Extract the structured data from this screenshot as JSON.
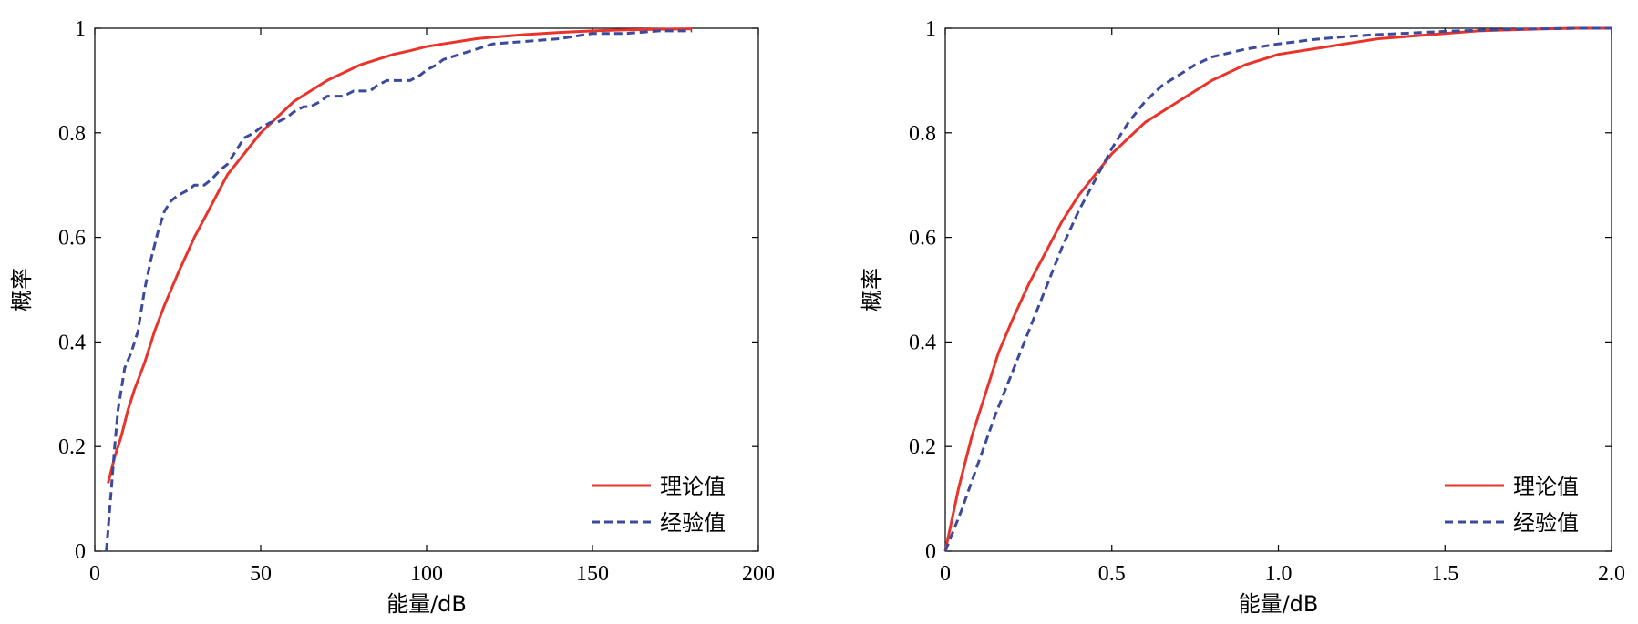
{
  "chart_data": [
    {
      "type": "line",
      "xlabel": "能量/dB",
      "ylabel": "概率",
      "xlim": [
        0,
        200
      ],
      "ylim": [
        0,
        1
      ],
      "xticks": [
        "0",
        "50",
        "100",
        "150",
        "200"
      ],
      "yticks": [
        "0",
        "0.2",
        "0.4",
        "0.6",
        "0.8",
        "1"
      ],
      "legend_position": "bottom-right",
      "grid": false,
      "series": [
        {
          "name": "理论值",
          "color": "#e8342b",
          "style": "solid",
          "x": [
            4,
            6,
            8,
            10,
            12,
            15,
            18,
            21,
            25,
            30,
            35,
            40,
            45,
            50,
            55,
            60,
            65,
            70,
            75,
            80,
            85,
            90,
            95,
            100,
            105,
            110,
            115,
            120,
            130,
            140,
            150,
            160,
            170,
            180
          ],
          "y": [
            0.13,
            0.18,
            0.22,
            0.27,
            0.31,
            0.36,
            0.42,
            0.47,
            0.53,
            0.6,
            0.66,
            0.72,
            0.76,
            0.8,
            0.83,
            0.86,
            0.88,
            0.9,
            0.915,
            0.93,
            0.94,
            0.95,
            0.957,
            0.965,
            0.97,
            0.975,
            0.98,
            0.983,
            0.988,
            0.992,
            0.995,
            0.997,
            0.998,
            0.999
          ]
        },
        {
          "name": "经验值",
          "color": "#3b4a9c",
          "style": "dashed",
          "x": [
            3.5,
            5,
            6,
            7,
            9,
            11,
            13,
            15,
            17,
            19,
            21,
            23,
            25,
            28,
            30,
            33,
            35,
            38,
            40,
            43,
            45,
            48,
            50,
            53,
            55,
            58,
            60,
            63,
            65,
            68,
            70,
            73,
            75,
            78,
            80,
            83,
            85,
            88,
            90,
            93,
            95,
            98,
            100,
            103,
            105,
            110,
            115,
            120,
            130,
            140,
            145,
            150,
            160,
            170,
            180
          ],
          "y": [
            0.0,
            0.12,
            0.2,
            0.27,
            0.35,
            0.38,
            0.42,
            0.5,
            0.56,
            0.61,
            0.65,
            0.67,
            0.68,
            0.69,
            0.7,
            0.7,
            0.71,
            0.73,
            0.74,
            0.77,
            0.79,
            0.8,
            0.81,
            0.82,
            0.82,
            0.83,
            0.84,
            0.85,
            0.85,
            0.86,
            0.87,
            0.87,
            0.87,
            0.88,
            0.88,
            0.88,
            0.89,
            0.9,
            0.9,
            0.9,
            0.9,
            0.91,
            0.92,
            0.93,
            0.94,
            0.95,
            0.96,
            0.97,
            0.975,
            0.98,
            0.985,
            0.99,
            0.99,
            0.995,
            0.995
          ]
        }
      ]
    },
    {
      "type": "line",
      "xlabel": "能量/dB",
      "ylabel": "概率",
      "xlim": [
        0,
        2.0
      ],
      "ylim": [
        0,
        1
      ],
      "xticks": [
        "0",
        "0.5",
        "1.0",
        "1.5",
        "2.0"
      ],
      "yticks": [
        "0",
        "0.2",
        "0.4",
        "0.6",
        "0.8",
        "1"
      ],
      "legend_position": "bottom-right",
      "grid": false,
      "series": [
        {
          "name": "理论值",
          "color": "#e8342b",
          "style": "solid",
          "x": [
            0,
            0.04,
            0.08,
            0.12,
            0.16,
            0.2,
            0.25,
            0.3,
            0.35,
            0.4,
            0.45,
            0.5,
            0.55,
            0.6,
            0.65,
            0.7,
            0.75,
            0.8,
            0.9,
            1.0,
            1.1,
            1.2,
            1.3,
            1.4,
            1.5,
            1.6,
            1.7,
            1.8,
            1.9,
            2.0
          ],
          "y": [
            0,
            0.12,
            0.22,
            0.3,
            0.38,
            0.44,
            0.51,
            0.57,
            0.63,
            0.68,
            0.72,
            0.76,
            0.79,
            0.82,
            0.84,
            0.86,
            0.88,
            0.9,
            0.93,
            0.95,
            0.96,
            0.97,
            0.98,
            0.985,
            0.99,
            0.995,
            0.997,
            0.999,
            1.0,
            1.0
          ]
        },
        {
          "name": "经验值",
          "color": "#3b4a9c",
          "style": "dashed",
          "x": [
            0,
            0.05,
            0.1,
            0.15,
            0.2,
            0.25,
            0.3,
            0.35,
            0.4,
            0.45,
            0.5,
            0.55,
            0.6,
            0.65,
            0.7,
            0.75,
            0.8,
            0.9,
            1.0,
            1.1,
            1.2,
            1.3,
            1.4,
            1.5,
            1.6,
            1.7,
            1.8,
            1.9,
            2.0
          ],
          "y": [
            0,
            0.08,
            0.17,
            0.26,
            0.34,
            0.42,
            0.5,
            0.58,
            0.65,
            0.71,
            0.77,
            0.82,
            0.86,
            0.89,
            0.91,
            0.93,
            0.945,
            0.96,
            0.97,
            0.978,
            0.984,
            0.988,
            0.991,
            0.994,
            0.996,
            0.998,
            0.999,
            1.0,
            1.0
          ]
        }
      ]
    }
  ]
}
